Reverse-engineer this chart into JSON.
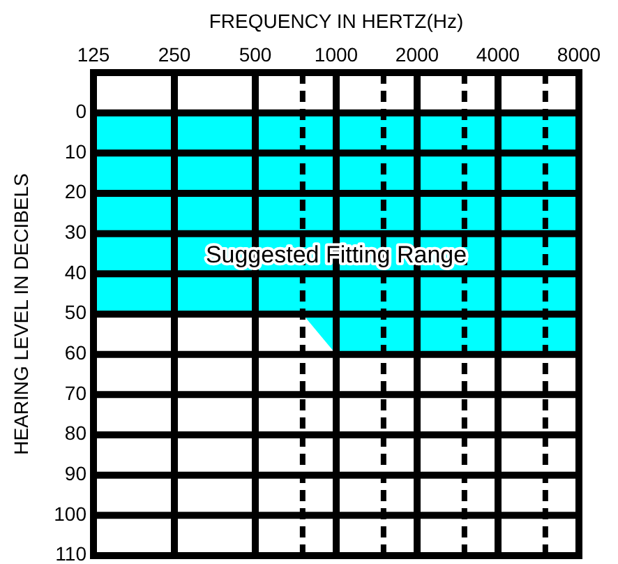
{
  "chart_data": {
    "type": "area",
    "title": "FREQUENCY IN HERTZ(Hz)",
    "ylabel": "HEARING LEVEL IN DECIBELS",
    "log": "x",
    "xlim": [
      125,
      8000
    ],
    "xticks": [
      125,
      250,
      500,
      {
        "value": 750,
        "label": null
      },
      1000,
      {
        "value": 1500,
        "label": null
      },
      2000,
      {
        "value": 3000,
        "label": null
      },
      4000,
      {
        "value": 6000,
        "label": null
      },
      8000
    ],
    "ylim": [
      110,
      -10
    ],
    "yticks": [
      0,
      10,
      20,
      30,
      40,
      50,
      60,
      70,
      80,
      90,
      100,
      110
    ],
    "grid": true,
    "series": [
      {
        "color": "#00ffff",
        "x": [
          125,
          750,
          1000,
          8000
        ],
        "values": [
          50,
          50,
          60,
          60
        ]
      }
    ],
    "annotations": [
      "Suggested Fitting Range"
    ]
  }
}
